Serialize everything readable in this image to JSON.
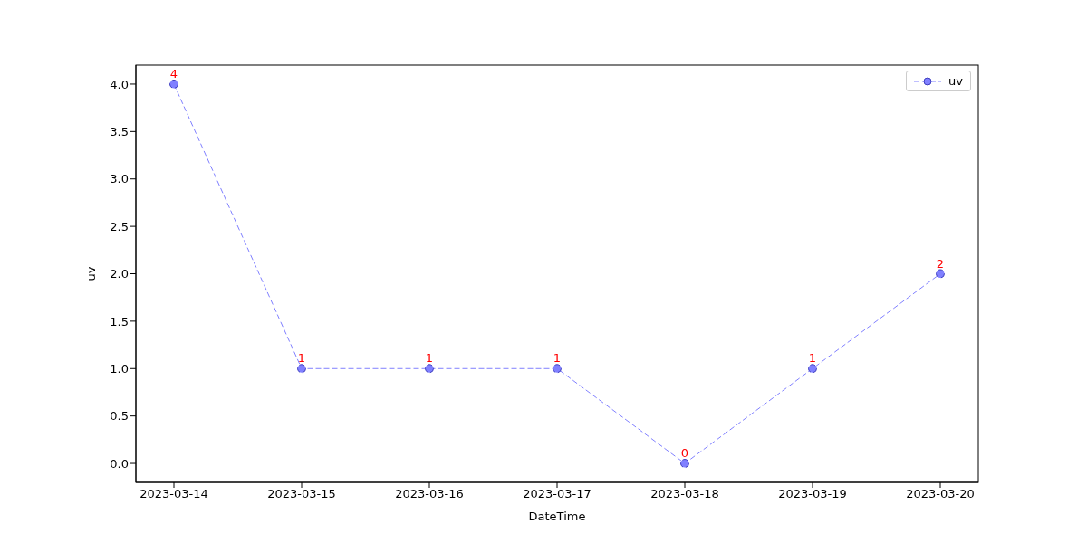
{
  "chart_data": {
    "type": "line",
    "xlabel": "DateTime",
    "ylabel": "uv",
    "categories": [
      "2023-03-14",
      "2023-03-15",
      "2023-03-16",
      "2023-03-17",
      "2023-03-18",
      "2023-03-19",
      "2023-03-20"
    ],
    "series": [
      {
        "name": "uv",
        "color": "#8080ff",
        "values": [
          4,
          1,
          1,
          1,
          0,
          1,
          2
        ]
      }
    ],
    "ylim": [
      -0.2,
      4.2
    ],
    "yticks": [
      {
        "value": 0,
        "label": "0.0"
      },
      {
        "value": 0.5,
        "label": "0.5"
      },
      {
        "value": 1,
        "label": "1.0"
      },
      {
        "value": 1.5,
        "label": "1.5"
      },
      {
        "value": 2,
        "label": "2.0"
      },
      {
        "value": 2.5,
        "label": "2.5"
      },
      {
        "value": 3,
        "label": "3.0"
      },
      {
        "value": 3.5,
        "label": "3.5"
      },
      {
        "value": 4,
        "label": "4.0"
      }
    ],
    "data_labels": true,
    "grid": false,
    "legend": "top right",
    "marker": "circle",
    "line_style": "dashed"
  }
}
